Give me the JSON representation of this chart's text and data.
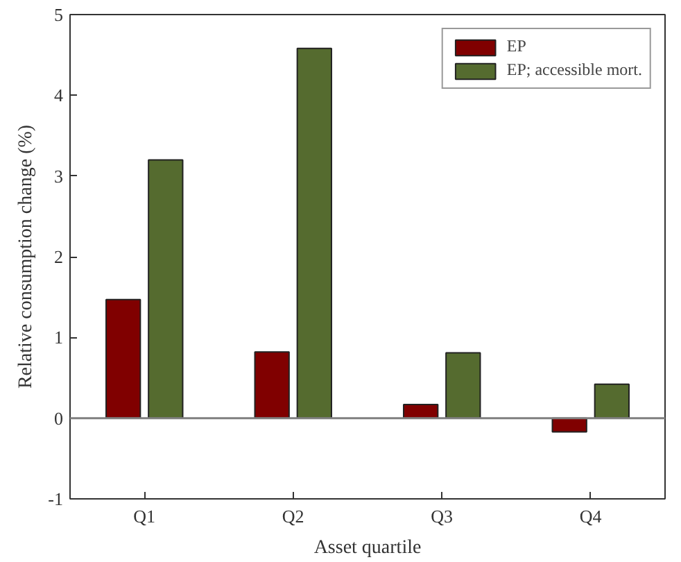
{
  "chart_data": {
    "type": "bar",
    "xlabel": "Asset quartile",
    "ylabel": "Relative consumption change (%)",
    "categories": [
      "Q1",
      "Q2",
      "Q3",
      "Q4"
    ],
    "series": [
      {
        "name": "EP",
        "color": "#800000",
        "values": [
          1.47,
          0.82,
          0.17,
          -0.17
        ]
      },
      {
        "name": "EP; accessible mort.",
        "color": "#556b2f",
        "values": [
          3.2,
          4.58,
          0.81,
          0.42
        ]
      }
    ],
    "ylim": [
      -1,
      5
    ],
    "yticks": [
      -1,
      0,
      1,
      2,
      3,
      4,
      5
    ],
    "ref_lines": [
      {
        "axis": "y",
        "value": 0,
        "color": "#808080"
      }
    ],
    "grid": false,
    "legend": "top right"
  }
}
